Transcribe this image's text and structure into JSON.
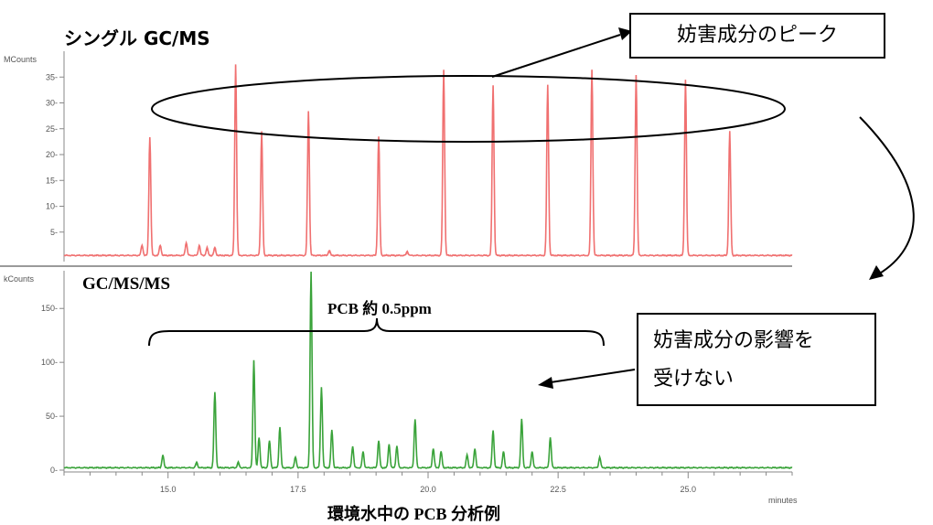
{
  "labels": {
    "top_title": "シングル GC/MS",
    "bottom_title": "GC/MS/MS",
    "pcb_label": "PCB 約 0.5ppm",
    "caption": "環境水中の PCB 分析例",
    "callout_top": "妨害成分のピーク",
    "callout_bottom_line1": "妨害成分の影響を",
    "callout_bottom_line2": "受けない"
  },
  "colors": {
    "top_trace": "#f07070",
    "bottom_trace": "#3aa33a",
    "axis": "#888888",
    "annotation": "#000000"
  },
  "chart_data": [
    {
      "type": "line",
      "title": "シングル GC/MS",
      "ylabel": "MCounts",
      "ylim": [
        0,
        40
      ],
      "yticks": [
        5,
        10,
        15,
        20,
        25,
        30,
        35
      ],
      "xlim": [
        13.0,
        27.0
      ],
      "series": [
        {
          "peaks": [
            {
              "x": 14.5,
              "y": 2
            },
            {
              "x": 14.65,
              "y": 23
            },
            {
              "x": 14.85,
              "y": 2
            },
            {
              "x": 15.35,
              "y": 2.5
            },
            {
              "x": 15.6,
              "y": 2
            },
            {
              "x": 15.75,
              "y": 1.5
            },
            {
              "x": 15.9,
              "y": 1.5
            },
            {
              "x": 16.3,
              "y": 37
            },
            {
              "x": 16.8,
              "y": 24
            },
            {
              "x": 17.7,
              "y": 28
            },
            {
              "x": 18.1,
              "y": 1
            },
            {
              "x": 19.05,
              "y": 23
            },
            {
              "x": 19.6,
              "y": 0.8
            },
            {
              "x": 20.3,
              "y": 36
            },
            {
              "x": 21.25,
              "y": 33
            },
            {
              "x": 22.3,
              "y": 33
            },
            {
              "x": 23.15,
              "y": 36
            },
            {
              "x": 24.0,
              "y": 35
            },
            {
              "x": 24.95,
              "y": 34
            },
            {
              "x": 25.8,
              "y": 24
            }
          ]
        }
      ]
    },
    {
      "type": "line",
      "title": "GC/MS/MS",
      "ylabel": "kCounts",
      "xlabel": "minutes",
      "ylim": [
        0,
        185
      ],
      "yticks": [
        0,
        50,
        100,
        150
      ],
      "xlim": [
        13.0,
        27.0
      ],
      "xticks": [
        15.0,
        17.5,
        20.0,
        22.5,
        25.0
      ],
      "series": [
        {
          "peaks": [
            {
              "x": 14.9,
              "y": 12
            },
            {
              "x": 15.55,
              "y": 5
            },
            {
              "x": 15.9,
              "y": 70
            },
            {
              "x": 16.35,
              "y": 5
            },
            {
              "x": 16.65,
              "y": 100
            },
            {
              "x": 16.75,
              "y": 28
            },
            {
              "x": 16.95,
              "y": 25
            },
            {
              "x": 17.15,
              "y": 38
            },
            {
              "x": 17.45,
              "y": 10
            },
            {
              "x": 17.75,
              "y": 182
            },
            {
              "x": 17.95,
              "y": 75
            },
            {
              "x": 18.15,
              "y": 35
            },
            {
              "x": 18.55,
              "y": 20
            },
            {
              "x": 18.75,
              "y": 15
            },
            {
              "x": 19.05,
              "y": 25
            },
            {
              "x": 19.25,
              "y": 22
            },
            {
              "x": 19.4,
              "y": 20
            },
            {
              "x": 19.75,
              "y": 45
            },
            {
              "x": 20.1,
              "y": 18
            },
            {
              "x": 20.25,
              "y": 15
            },
            {
              "x": 20.75,
              "y": 12
            },
            {
              "x": 20.9,
              "y": 18
            },
            {
              "x": 21.25,
              "y": 35
            },
            {
              "x": 21.45,
              "y": 15
            },
            {
              "x": 21.8,
              "y": 45
            },
            {
              "x": 22.0,
              "y": 15
            },
            {
              "x": 22.35,
              "y": 28
            },
            {
              "x": 23.3,
              "y": 10
            }
          ]
        }
      ]
    }
  ]
}
